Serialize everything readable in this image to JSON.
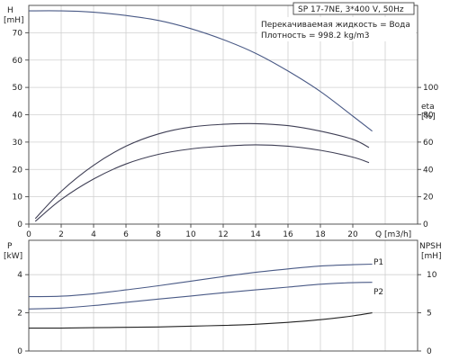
{
  "chart_data": [
    {
      "type": "line",
      "title": "SP 17-7NE, 3*400 V, 50Hz",
      "annotations": [
        "Перекачиваемая жидкость = Вода",
        "Плотность = 998.2 kg/m3"
      ],
      "xlabel": "Q [m3/h]",
      "x_ticks": [
        0,
        2,
        4,
        6,
        8,
        10,
        12,
        14,
        16,
        18,
        20
      ],
      "xlim": [
        0,
        24
      ],
      "left_axis": {
        "label_top": "H",
        "label_unit": "[mH]",
        "ticks": [
          0,
          10,
          20,
          30,
          40,
          50,
          60,
          70
        ],
        "ylim": [
          0,
          80
        ]
      },
      "right_axis": {
        "label_top": "eta",
        "label_unit": "[%]",
        "ticks": [
          0,
          20,
          40,
          60,
          80,
          100
        ],
        "ylim": [
          0,
          160
        ]
      },
      "grid": true,
      "series": [
        {
          "axis": "left",
          "x": [
            0,
            2,
            4,
            6,
            8,
            10,
            12,
            14,
            16,
            18,
            20,
            21.2
          ],
          "y": [
            78,
            78,
            77.5,
            76.3,
            74.5,
            71.5,
            67.5,
            62.5,
            56,
            48.5,
            39.5,
            34
          ]
        },
        {
          "axis": "right",
          "x": [
            0.4,
            2,
            4,
            6,
            8,
            10,
            12,
            14,
            16,
            18,
            20,
            21
          ],
          "y": [
            4,
            24,
            43,
            57,
            66,
            71,
            73,
            73.5,
            72,
            68,
            62,
            56
          ]
        },
        {
          "axis": "right",
          "x": [
            0.4,
            2,
            4,
            6,
            8,
            10,
            12,
            14,
            16,
            18,
            20,
            21
          ],
          "y": [
            2,
            18,
            33,
            44,
            51,
            55,
            57,
            58,
            57,
            54,
            49,
            45
          ]
        }
      ]
    },
    {
      "type": "line",
      "left_axis": {
        "label_top": "P",
        "label_unit": "[kW]",
        "ticks": [
          0,
          2,
          4
        ],
        "ylim": [
          0,
          5.8
        ]
      },
      "right_axis": {
        "label_top": "NPSH",
        "label_unit": "[mH]",
        "ticks": [
          0,
          5,
          10
        ],
        "ylim": [
          0,
          14.5
        ]
      },
      "xlim": [
        0,
        24
      ],
      "grid": true,
      "series": [
        {
          "name": "P1",
          "axis": "left",
          "x": [
            0,
            2,
            4,
            6,
            8,
            10,
            12,
            14,
            16,
            18,
            20,
            21.2
          ],
          "y": [
            2.85,
            2.87,
            3.0,
            3.2,
            3.42,
            3.66,
            3.9,
            4.12,
            4.3,
            4.45,
            4.52,
            4.55
          ]
        },
        {
          "name": "P2",
          "axis": "left",
          "x": [
            0,
            2,
            4,
            6,
            8,
            10,
            12,
            14,
            16,
            18,
            20,
            21.2
          ],
          "y": [
            2.2,
            2.25,
            2.38,
            2.55,
            2.72,
            2.88,
            3.05,
            3.2,
            3.35,
            3.5,
            3.58,
            3.6
          ]
        },
        {
          "axis": "right",
          "x": [
            0,
            2,
            4,
            6,
            8,
            10,
            12,
            14,
            16,
            18,
            20,
            21.2
          ],
          "y": [
            3.0,
            3.0,
            3.05,
            3.1,
            3.15,
            3.25,
            3.35,
            3.5,
            3.75,
            4.1,
            4.6,
            5.0
          ]
        }
      ]
    }
  ]
}
